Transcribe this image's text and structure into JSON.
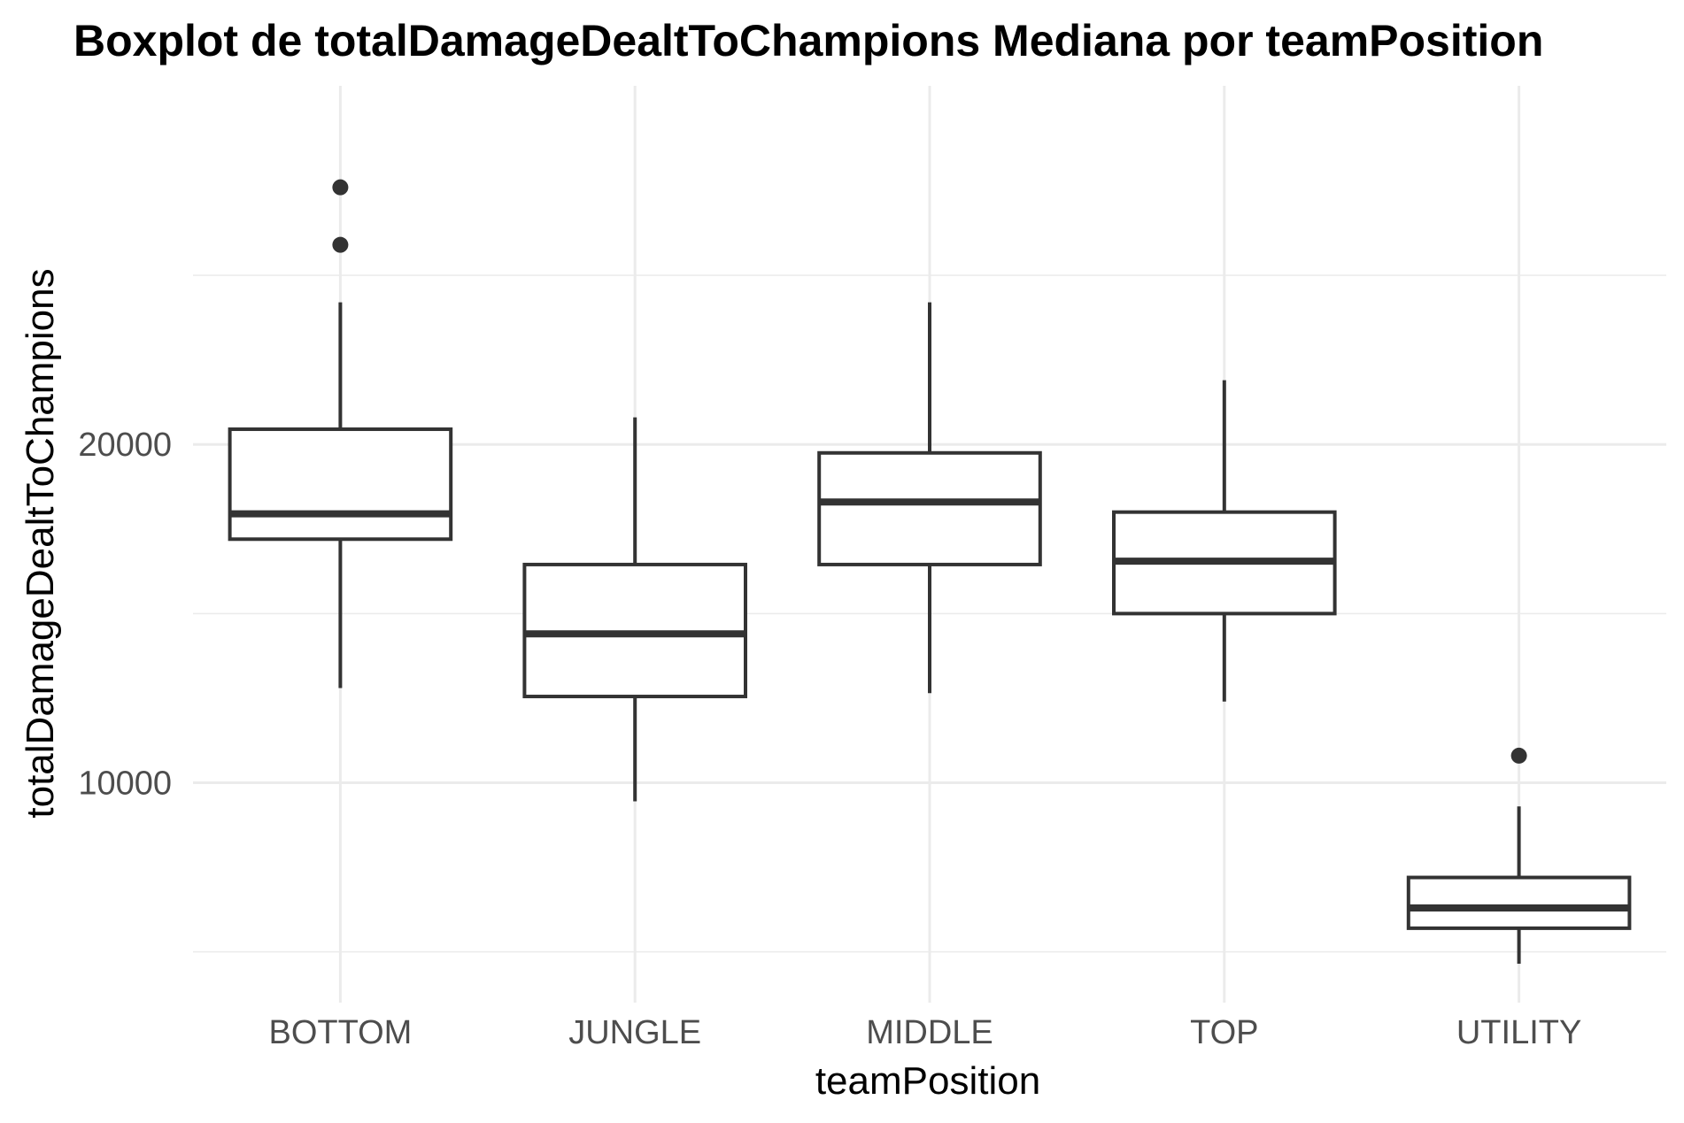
{
  "chart_data": {
    "type": "boxplot",
    "title": "Boxplot de totalDamageDealtToChampions Mediana por teamPosition",
    "xlabel": "teamPosition",
    "ylabel": "totalDamageDealtToChampions",
    "ylim": [
      3500,
      30600
    ],
    "y_ticks": [
      10000,
      20000
    ],
    "y_tick_labels": [
      "10000",
      "20000"
    ],
    "grid": true,
    "categories": [
      "BOTTOM",
      "JUNGLE",
      "MIDDLE",
      "TOP",
      "UTILITY"
    ],
    "boxes": [
      {
        "category": "BOTTOM",
        "lower_whisker": 12800,
        "q1": 17200,
        "median": 17950,
        "q3": 20450,
        "upper_whisker": 24200,
        "outliers": [
          25900,
          27600
        ]
      },
      {
        "category": "JUNGLE",
        "lower_whisker": 9450,
        "q1": 12550,
        "median": 14400,
        "q3": 16450,
        "upper_whisker": 20800,
        "outliers": []
      },
      {
        "category": "MIDDLE",
        "lower_whisker": 12650,
        "q1": 16450,
        "median": 18300,
        "q3": 19750,
        "upper_whisker": 24200,
        "outliers": []
      },
      {
        "category": "TOP",
        "lower_whisker": 12400,
        "q1": 15000,
        "median": 16550,
        "q3": 18000,
        "upper_whisker": 21900,
        "outliers": []
      },
      {
        "category": "UTILITY",
        "lower_whisker": 4650,
        "q1": 5700,
        "median": 6300,
        "q3": 7200,
        "upper_whisker": 9300,
        "outliers": [
          10800
        ]
      }
    ],
    "colors": {
      "box_stroke": "#333333",
      "box_fill": "#ffffff",
      "grid": "#ebebeb",
      "tick_text": "#4d4d4d",
      "title_text": "#000000"
    }
  }
}
